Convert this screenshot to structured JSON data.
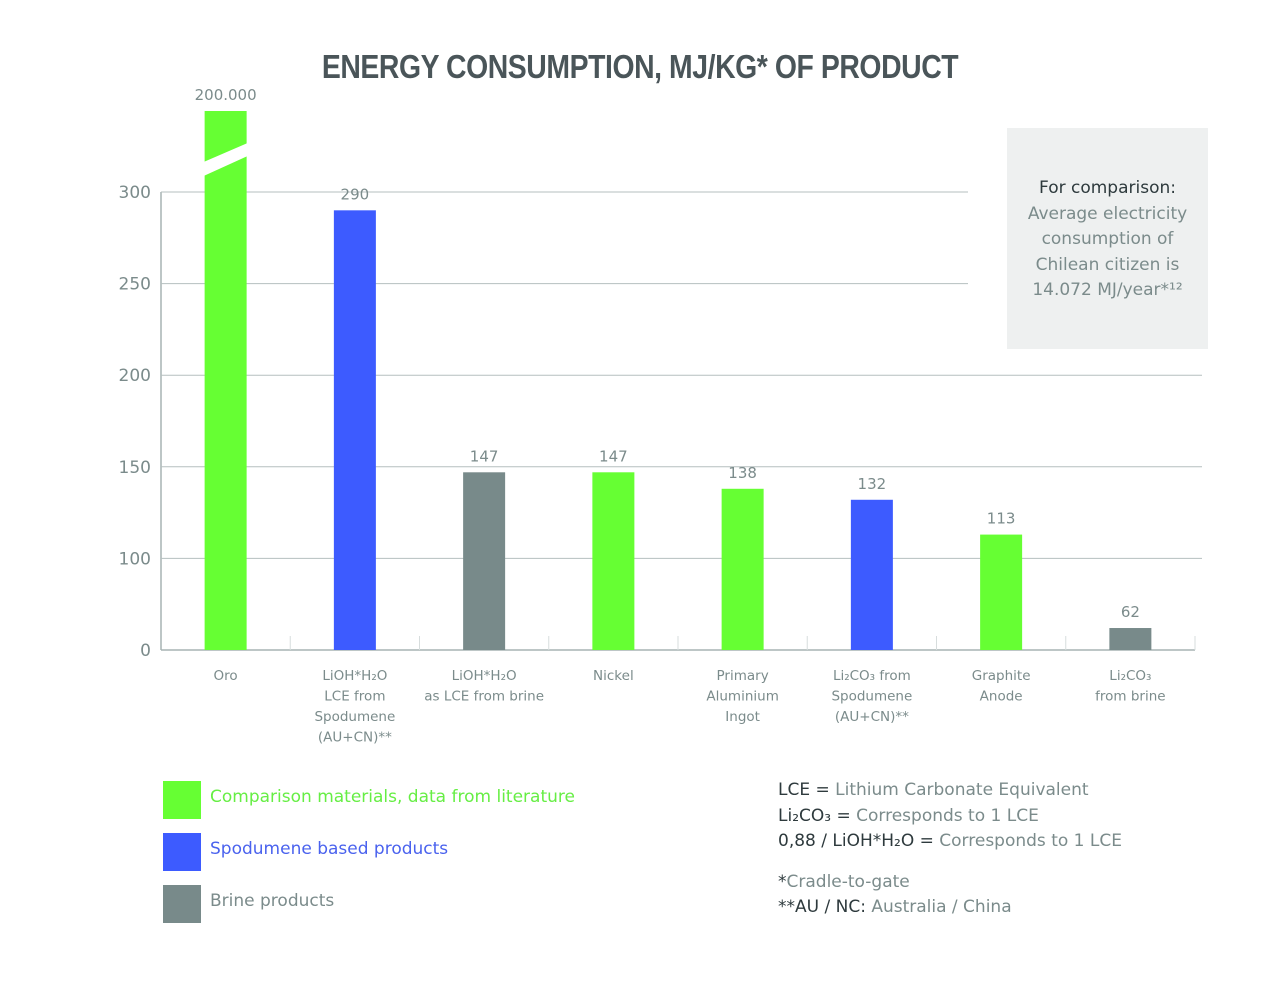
{
  "chart_data": {
    "type": "bar",
    "title": "ENERGY CONSUMPTION, MJ/KG* OF PRODUCT",
    "xlabel": "",
    "ylabel": "",
    "y_ticks": [
      0,
      100,
      150,
      200,
      250,
      300
    ],
    "y_tick_labels": [
      "0",
      "100",
      "150",
      "200",
      "250",
      "300"
    ],
    "ylim": [
      50,
      300
    ],
    "axis_break_note": "y-axis compressed below 100 (0 label at baseline); Oro bar broken",
    "grid": true,
    "categories": [
      [
        "Oro"
      ],
      [
        "LiOH*H₂O",
        "LCE from",
        "Spodumene",
        "(AU+CN)**"
      ],
      [
        "LiOH*H₂O",
        "as LCE from brine"
      ],
      [
        "Nickel"
      ],
      [
        "Primary",
        "Aluminium",
        "Ingot"
      ],
      [
        "Li₂CO₃ from",
        "Spodumene",
        "(AU+CN)**"
      ],
      [
        "Graphite",
        "Anode"
      ],
      [
        "Li₂CO₃",
        "from brine"
      ]
    ],
    "values": [
      200000,
      290,
      147,
      147,
      138,
      132,
      113,
      62
    ],
    "value_labels": [
      "200.000",
      "290",
      "147",
      "147",
      "138",
      "132",
      "113",
      "62"
    ],
    "groups": [
      "comparison",
      "spodumene",
      "brine",
      "comparison",
      "comparison",
      "spodumene",
      "comparison",
      "brine"
    ],
    "broken_bars": [
      0
    ],
    "legend": [
      {
        "key": "comparison",
        "label": "Comparison materials, data from literature",
        "color": "#66ff33"
      },
      {
        "key": "spodumene",
        "label": "Spodumene based products",
        "color": "#3d5bff"
      },
      {
        "key": "brine",
        "label": "Brine products",
        "color": "#788a8a"
      }
    ],
    "legend_position": "bottom-left"
  },
  "note": {
    "heading": "For comparison:",
    "lines": [
      "Average electricity",
      "consumption of",
      "Chilean citizen is",
      "14.072 MJ/year*¹²"
    ]
  },
  "definitions": [
    {
      "key": "LCE = ",
      "value": "Lithium Carbonate Equivalent"
    },
    {
      "key": "Li₂CO₃ = ",
      "value": "Corresponds to 1 LCE"
    },
    {
      "key": "0,88 / LiOH*H₂O = ",
      "value": "Corresponds to 1 LCE"
    }
  ],
  "footnotes": [
    {
      "key": "*",
      "value": "Cradle-to-gate"
    },
    {
      "key": "**AU / NC: ",
      "value": "Australia / China"
    }
  ],
  "colors": {
    "axis": "#a7b3b3",
    "grid": "#b5bfbf",
    "text": "#7b8b8b",
    "dark_text": "#2e3a3d"
  }
}
